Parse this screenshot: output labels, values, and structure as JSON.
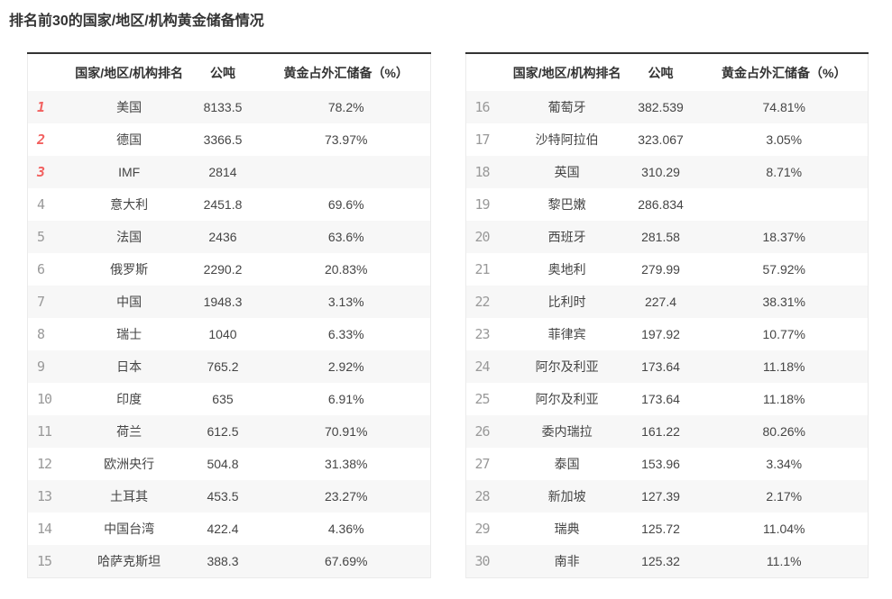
{
  "title": "排名前30的国家/地区/机构黄金储备情况",
  "columns": {
    "rank": "",
    "name": "国家/地区/机构排名",
    "tons": "公吨",
    "percent": "黄金占外汇储备（%）"
  },
  "top_rank_threshold": 3,
  "colors": {
    "title_text": "#333333",
    "header_text": "#333333",
    "body_text": "#454545",
    "rank_default": "#999999",
    "rank_top": "#f2605f",
    "row_alt_bg": "#f7f7f7",
    "table_top_border": "#333333",
    "table_edge_border": "#ebebeb"
  },
  "tables": [
    {
      "name": "ranks-1-15",
      "rows": [
        {
          "rank": "1",
          "name": "美国",
          "tons": "8133.5",
          "percent": "78.2%"
        },
        {
          "rank": "2",
          "name": "德国",
          "tons": "3366.5",
          "percent": "73.97%"
        },
        {
          "rank": "3",
          "name": "IMF",
          "tons": "2814",
          "percent": ""
        },
        {
          "rank": "4",
          "name": "意大利",
          "tons": "2451.8",
          "percent": "69.6%"
        },
        {
          "rank": "5",
          "name": "法国",
          "tons": "2436",
          "percent": "63.6%"
        },
        {
          "rank": "6",
          "name": "俄罗斯",
          "tons": "2290.2",
          "percent": "20.83%"
        },
        {
          "rank": "7",
          "name": "中国",
          "tons": "1948.3",
          "percent": "3.13%"
        },
        {
          "rank": "8",
          "name": "瑞士",
          "tons": "1040",
          "percent": "6.33%"
        },
        {
          "rank": "9",
          "name": "日本",
          "tons": "765.2",
          "percent": "2.92%"
        },
        {
          "rank": "10",
          "name": "印度",
          "tons": "635",
          "percent": "6.91%"
        },
        {
          "rank": "11",
          "name": "荷兰",
          "tons": "612.5",
          "percent": "70.91%"
        },
        {
          "rank": "12",
          "name": "欧洲央行",
          "tons": "504.8",
          "percent": "31.38%"
        },
        {
          "rank": "13",
          "name": "土耳其",
          "tons": "453.5",
          "percent": "23.27%"
        },
        {
          "rank": "14",
          "name": "中国台湾",
          "tons": "422.4",
          "percent": "4.36%"
        },
        {
          "rank": "15",
          "name": "哈萨克斯坦",
          "tons": "388.3",
          "percent": "67.69%"
        }
      ]
    },
    {
      "name": "ranks-16-30",
      "rows": [
        {
          "rank": "16",
          "name": "葡萄牙",
          "tons": "382.539",
          "percent": "74.81%"
        },
        {
          "rank": "17",
          "name": "沙特阿拉伯",
          "tons": "323.067",
          "percent": "3.05%"
        },
        {
          "rank": "18",
          "name": "英国",
          "tons": "310.29",
          "percent": "8.71%"
        },
        {
          "rank": "19",
          "name": "黎巴嫩",
          "tons": "286.834",
          "percent": ""
        },
        {
          "rank": "20",
          "name": "西班牙",
          "tons": "281.58",
          "percent": "18.37%"
        },
        {
          "rank": "21",
          "name": "奥地利",
          "tons": "279.99",
          "percent": "57.92%"
        },
        {
          "rank": "22",
          "name": "比利时",
          "tons": "227.4",
          "percent": "38.31%"
        },
        {
          "rank": "23",
          "name": "菲律宾",
          "tons": "197.92",
          "percent": "10.77%"
        },
        {
          "rank": "24",
          "name": "阿尔及利亚",
          "tons": "173.64",
          "percent": "11.18%"
        },
        {
          "rank": "25",
          "name": "阿尔及利亚",
          "tons": "173.64",
          "percent": "11.18%"
        },
        {
          "rank": "26",
          "name": "委内瑞拉",
          "tons": "161.22",
          "percent": "80.26%"
        },
        {
          "rank": "27",
          "name": "泰国",
          "tons": "153.96",
          "percent": "3.34%"
        },
        {
          "rank": "28",
          "name": "新加坡",
          "tons": "127.39",
          "percent": "2.17%"
        },
        {
          "rank": "29",
          "name": "瑞典",
          "tons": "125.72",
          "percent": "11.04%"
        },
        {
          "rank": "30",
          "name": "南非",
          "tons": "125.32",
          "percent": "11.1%"
        }
      ]
    }
  ]
}
